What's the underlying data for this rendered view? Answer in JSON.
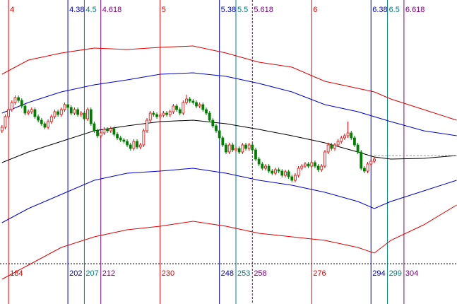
{
  "chart_data": {
    "type": "candlestick",
    "xlim": [
      181.4,
      320.1
    ],
    "ylim": [
      0,
      430
    ],
    "up_color": "#e00000",
    "down_color": "#008000",
    "x": [
      182,
      183,
      184,
      185,
      186,
      187,
      188,
      189,
      190,
      191,
      192,
      193,
      194,
      195,
      196,
      197,
      198,
      199,
      200,
      201,
      202,
      203,
      204,
      205,
      206,
      207,
      208,
      209,
      210,
      211,
      212,
      213,
      214,
      215,
      216,
      217,
      218,
      219,
      220,
      221,
      222,
      223,
      224,
      225,
      226,
      227,
      228,
      229,
      230,
      231,
      232,
      233,
      234,
      235,
      236,
      237,
      238,
      239,
      240,
      241,
      242,
      243,
      244,
      245,
      246,
      247,
      248,
      249,
      250,
      251,
      252,
      253,
      254,
      255,
      256,
      257,
      258,
      259,
      260,
      261,
      262,
      263,
      264,
      265,
      266,
      267,
      268,
      269,
      270,
      271,
      272,
      273,
      274,
      275,
      276,
      277,
      278,
      279,
      280,
      281,
      282,
      283,
      284,
      285,
      286,
      287,
      288,
      289,
      290,
      291,
      292,
      293,
      294,
      295
    ],
    "ohlc": [
      [
        245,
        253,
        242,
        250
      ],
      [
        250,
        268,
        247,
        265
      ],
      [
        265,
        278,
        262,
        275
      ],
      [
        275,
        288,
        272,
        285
      ],
      [
        285,
        295,
        282,
        292
      ],
      [
        292,
        295,
        285,
        288
      ],
      [
        288,
        291,
        277,
        280
      ],
      [
        280,
        283,
        267,
        270
      ],
      [
        270,
        275,
        267,
        272
      ],
      [
        272,
        278,
        269,
        275
      ],
      [
        275,
        278,
        262,
        265
      ],
      [
        265,
        268,
        257,
        260
      ],
      [
        260,
        263,
        252,
        255
      ],
      [
        255,
        258,
        247,
        250
      ],
      [
        250,
        261,
        247,
        258
      ],
      [
        258,
        268,
        255,
        265
      ],
      [
        265,
        275,
        262,
        272
      ],
      [
        272,
        275,
        265,
        268
      ],
      [
        268,
        278,
        265,
        275
      ],
      [
        275,
        285,
        272,
        282
      ],
      [
        282,
        285,
        275,
        278
      ],
      [
        278,
        281,
        267,
        270
      ],
      [
        270,
        278,
        267,
        275
      ],
      [
        275,
        278,
        265,
        268
      ],
      [
        268,
        273,
        265,
        270
      ],
      [
        270,
        273,
        259,
        262
      ],
      [
        262,
        278,
        259,
        275
      ],
      [
        275,
        278,
        252,
        255
      ],
      [
        255,
        258,
        242,
        245
      ],
      [
        245,
        248,
        235,
        238
      ],
      [
        238,
        245,
        235,
        242
      ],
      [
        242,
        250,
        239,
        247
      ],
      [
        247,
        250,
        242,
        245
      ],
      [
        245,
        251,
        242,
        248
      ],
      [
        248,
        251,
        237,
        240
      ],
      [
        240,
        243,
        232,
        235
      ],
      [
        235,
        238,
        229,
        232
      ],
      [
        232,
        235,
        227,
        230
      ],
      [
        230,
        233,
        222,
        225
      ],
      [
        225,
        228,
        217,
        220
      ],
      [
        220,
        233,
        217,
        230
      ],
      [
        230,
        233,
        219,
        222
      ],
      [
        222,
        228,
        219,
        225
      ],
      [
        225,
        248,
        222,
        245
      ],
      [
        245,
        263,
        242,
        260
      ],
      [
        260,
        273,
        257,
        270
      ],
      [
        270,
        273,
        265,
        268
      ],
      [
        268,
        271,
        262,
        265
      ],
      [
        265,
        270,
        262,
        267
      ],
      [
        267,
        273,
        264,
        270
      ],
      [
        270,
        273,
        265,
        268
      ],
      [
        268,
        275,
        265,
        272
      ],
      [
        272,
        283,
        269,
        280
      ],
      [
        280,
        283,
        272,
        275
      ],
      [
        275,
        278,
        267,
        270
      ],
      [
        270,
        288,
        267,
        285
      ],
      [
        285,
        296,
        282,
        290
      ],
      [
        290,
        293,
        284,
        287
      ],
      [
        287,
        290,
        282,
        285
      ],
      [
        285,
        288,
        277,
        280
      ],
      [
        280,
        285,
        277,
        282
      ],
      [
        282,
        285,
        272,
        275
      ],
      [
        275,
        278,
        267,
        270
      ],
      [
        270,
        273,
        257,
        260
      ],
      [
        260,
        263,
        249,
        252
      ],
      [
        252,
        255,
        242,
        245
      ],
      [
        245,
        248,
        232,
        235
      ],
      [
        235,
        238,
        222,
        225
      ],
      [
        225,
        228,
        212,
        215
      ],
      [
        215,
        228,
        212,
        225
      ],
      [
        225,
        228,
        215,
        218
      ],
      [
        218,
        223,
        215,
        220
      ],
      [
        220,
        223,
        212,
        215
      ],
      [
        215,
        228,
        212,
        225
      ],
      [
        225,
        228,
        217,
        220
      ],
      [
        220,
        228,
        217,
        225
      ],
      [
        225,
        228,
        215,
        218
      ],
      [
        218,
        221,
        202,
        205
      ],
      [
        205,
        208,
        195,
        198
      ],
      [
        198,
        201,
        189,
        192
      ],
      [
        192,
        198,
        189,
        195
      ],
      [
        195,
        198,
        185,
        188
      ],
      [
        188,
        191,
        182,
        185
      ],
      [
        185,
        193,
        182,
        190
      ],
      [
        190,
        193,
        185,
        188
      ],
      [
        188,
        191,
        179,
        182
      ],
      [
        182,
        190,
        179,
        187
      ],
      [
        187,
        190,
        177,
        180
      ],
      [
        180,
        183,
        172,
        175
      ],
      [
        175,
        185,
        172,
        182
      ],
      [
        182,
        195,
        179,
        192
      ],
      [
        192,
        198,
        189,
        195
      ],
      [
        195,
        201,
        192,
        198
      ],
      [
        198,
        201,
        192,
        195
      ],
      [
        195,
        203,
        192,
        200
      ],
      [
        200,
        203,
        192,
        195
      ],
      [
        195,
        198,
        187,
        190
      ],
      [
        190,
        198,
        187,
        195
      ],
      [
        195,
        218,
        192,
        215
      ],
      [
        215,
        228,
        212,
        225
      ],
      [
        225,
        228,
        217,
        220
      ],
      [
        220,
        228,
        217,
        225
      ],
      [
        225,
        233,
        222,
        230
      ],
      [
        230,
        238,
        227,
        235
      ],
      [
        235,
        241,
        232,
        238
      ],
      [
        238,
        258,
        235,
        242
      ],
      [
        242,
        245,
        232,
        235
      ],
      [
        235,
        238,
        222,
        225
      ],
      [
        225,
        228,
        212,
        215
      ],
      [
        215,
        218,
        189,
        192
      ],
      [
        192,
        195,
        185,
        188
      ],
      [
        188,
        201,
        185,
        198
      ],
      [
        198,
        205,
        195,
        202
      ],
      [
        202,
        208,
        199,
        205
      ]
    ],
    "band_x": [
      182,
      190,
      200,
      210,
      220,
      230,
      240,
      250,
      260,
      270,
      280,
      290,
      295,
      300,
      310,
      320
    ],
    "bands": [
      {
        "color": "#e00000",
        "values": [
          325,
          345,
          355,
          362,
          360,
          363,
          365,
          355,
          342,
          335,
          315,
          305,
          300,
          290,
          275,
          260
        ]
      },
      {
        "color": "#0000cc",
        "values": [
          270,
          285,
          300,
          310,
          317,
          325,
          327,
          322,
          312,
          300,
          282,
          272,
          265,
          258,
          245,
          238
        ]
      },
      {
        "color": "#000000",
        "values": [
          200,
          215,
          230,
          245,
          252,
          258,
          260,
          255,
          247,
          238,
          228,
          215,
          208,
          205,
          206,
          210
        ]
      },
      {
        "color": "#0000cc",
        "values": [
          115,
          135,
          155,
          175,
          185,
          188,
          192,
          185,
          175,
          168,
          158,
          145,
          135,
          145,
          160,
          175
        ]
      },
      {
        "color": "#e00000",
        "values": [
          35,
          55,
          80,
          95,
          105,
          110,
          117,
          110,
          100,
          95,
          90,
          80,
          72,
          90,
          112,
          140
        ]
      }
    ],
    "baseline": 57,
    "last_price": 210,
    "time_lines": [
      {
        "label": 4,
        "bar": 184,
        "color": "#e00000",
        "dashed": false
      },
      {
        "label": 4.38,
        "bar": 202,
        "color": "#0000cc",
        "dashed": false
      },
      {
        "label": 4.5,
        "bar": 207,
        "color": "#008080",
        "dashed": false
      },
      {
        "label": 4.618,
        "bar": 212,
        "color": "#800080",
        "dashed": false
      },
      {
        "label": 5,
        "bar": 230,
        "color": "#e00000",
        "dashed": false
      },
      {
        "label": 5.38,
        "bar": 248,
        "color": "#0000cc",
        "dashed": false
      },
      {
        "label": 5.5,
        "bar": 253,
        "color": "#008080",
        "dashed": false
      },
      {
        "label": 5.618,
        "bar": 258,
        "color": "#800080",
        "dashed": true
      },
      {
        "label": 6,
        "bar": 276,
        "color": "#e00000",
        "dashed": false
      },
      {
        "label": 6.38,
        "bar": 294,
        "color": "#0000cc",
        "dashed": false
      },
      {
        "label": 6.5,
        "bar": 299,
        "color": "#008080",
        "dashed": false
      },
      {
        "label": 6.618,
        "bar": 304,
        "color": "#800080",
        "dashed": false
      }
    ]
  }
}
